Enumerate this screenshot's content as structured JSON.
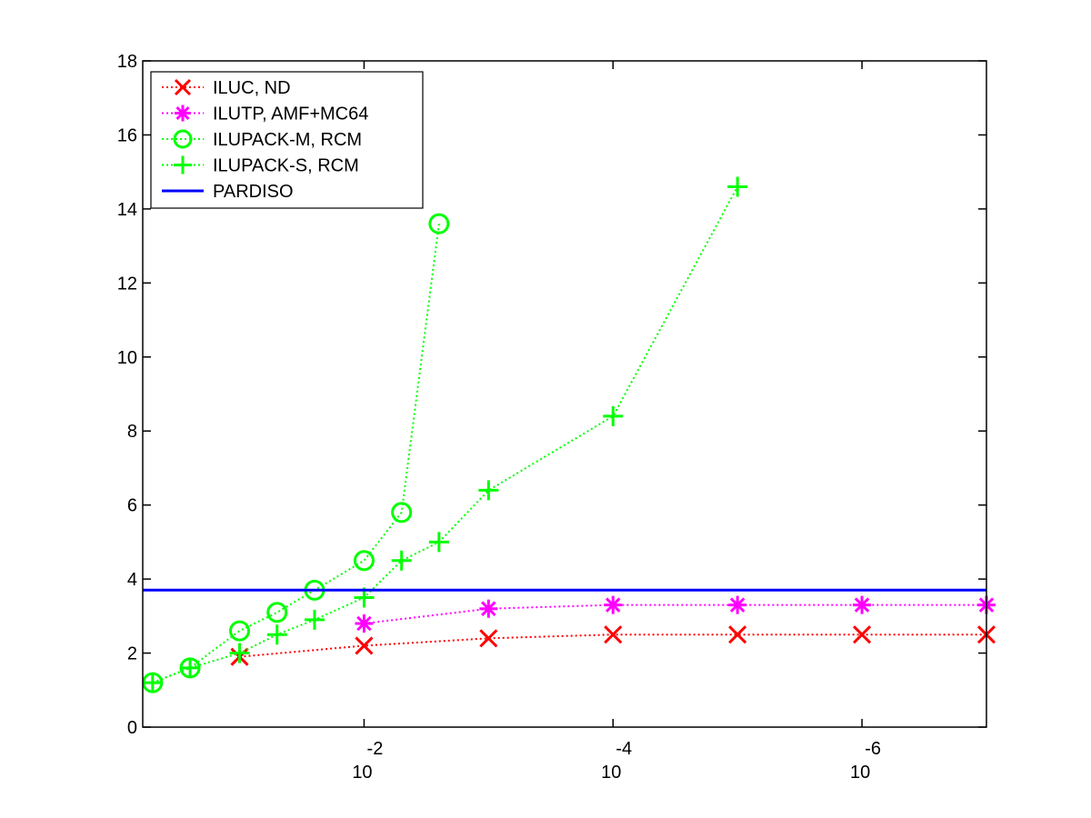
{
  "chart_data": {
    "type": "line",
    "title": "",
    "xlabel": "",
    "ylabel": "",
    "x_scale": "log-reversed",
    "xlim": [
      0.6,
      1e-07
    ],
    "ylim": [
      0,
      18
    ],
    "yticks": [
      "0",
      "2",
      "4",
      "6",
      "8",
      "10",
      "12",
      "14",
      "16",
      "18"
    ],
    "xticks": [
      {
        "value": 0.01,
        "base": "10",
        "exp": "-2"
      },
      {
        "value": 0.0001,
        "base": "10",
        "exp": "-4"
      },
      {
        "value": 1e-06,
        "base": "10",
        "exp": "-6"
      }
    ],
    "legend_position": "top-left",
    "series": [
      {
        "name": "ILUC,  ND",
        "color": "#ff0000",
        "marker": "x",
        "line": "dotted",
        "x": [
          0.1,
          0.01,
          0.001,
          0.0001,
          1e-05,
          1e-06,
          1e-07
        ],
        "y": [
          1.9,
          2.2,
          2.4,
          2.5,
          2.5,
          2.5,
          2.5
        ]
      },
      {
        "name": "ILUTP, AMF+MC64",
        "color": "#ff00ff",
        "marker": "asterisk",
        "line": "dotted",
        "x": [
          0.01,
          0.001,
          0.0001,
          1e-05,
          1e-06,
          1e-07
        ],
        "y": [
          2.8,
          3.2,
          3.3,
          3.3,
          3.3,
          3.3
        ]
      },
      {
        "name": "ILUPACK-M, RCM",
        "color": "#00ff00",
        "marker": "circle",
        "line": "dotted",
        "x": [
          0.5,
          0.25,
          0.1,
          0.05,
          0.025,
          0.01,
          0.005,
          0.0025
        ],
        "y": [
          1.2,
          1.6,
          2.6,
          3.1,
          3.7,
          4.5,
          5.8,
          13.6
        ]
      },
      {
        "name": "ILUPACK-S, RCM",
        "color": "#00ff00",
        "marker": "plus",
        "line": "dotted",
        "x": [
          0.5,
          0.25,
          0.1,
          0.05,
          0.025,
          0.01,
          0.005,
          0.0025,
          0.001,
          0.0001,
          1e-05
        ],
        "y": [
          1.2,
          1.6,
          2.0,
          2.5,
          2.9,
          3.5,
          4.5,
          5.0,
          6.4,
          8.4,
          14.6
        ]
      },
      {
        "name": "PARDISO",
        "color": "#0000ff",
        "marker": "none",
        "line": "solid",
        "x": [
          0.6,
          1e-07
        ],
        "y": [
          3.7,
          3.7
        ]
      }
    ]
  }
}
